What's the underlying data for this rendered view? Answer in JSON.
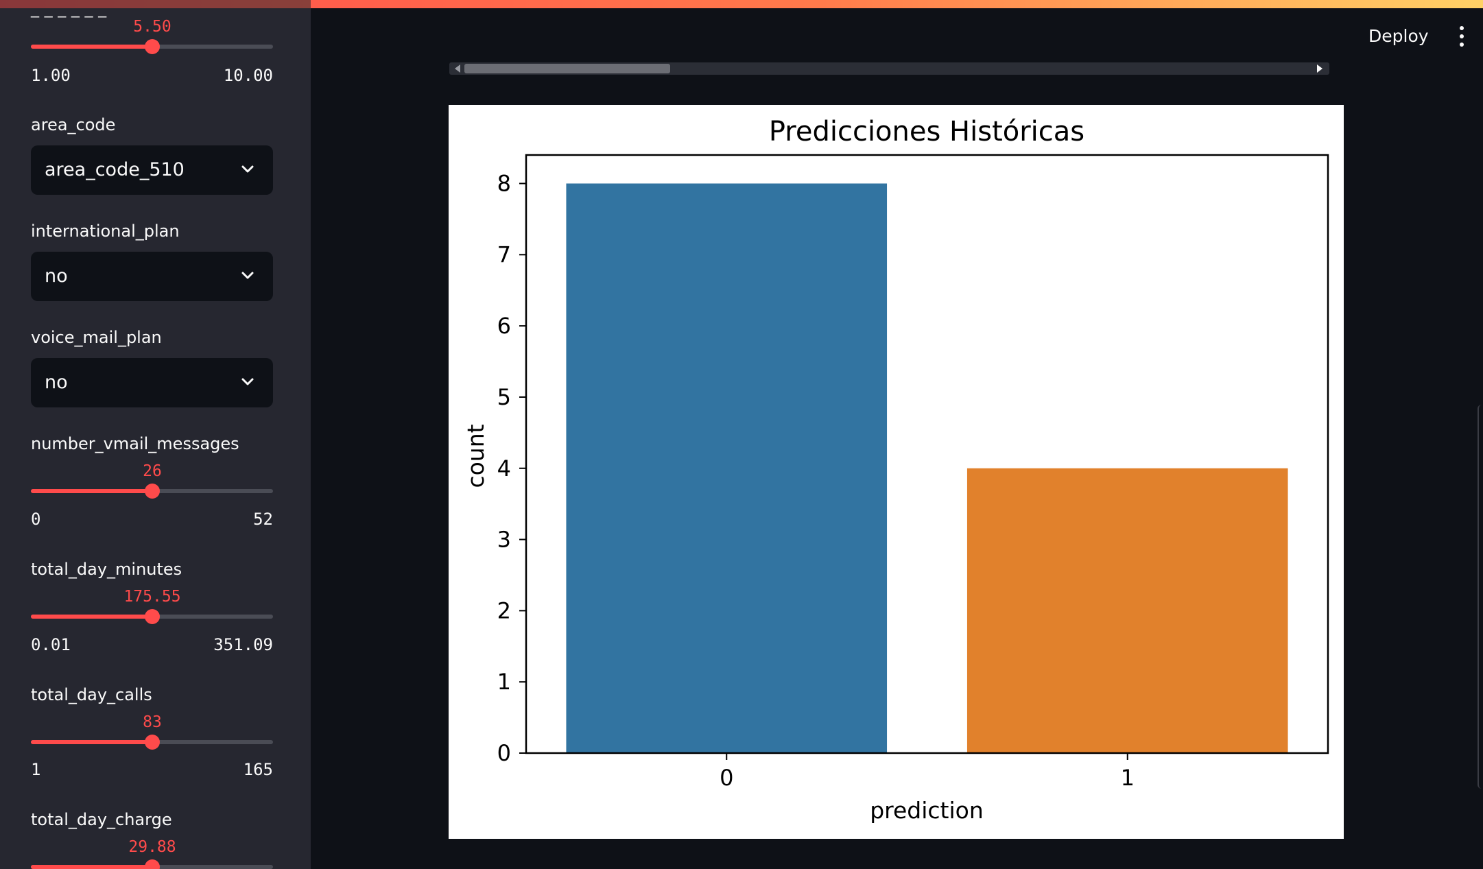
{
  "header": {
    "deploy_label": "Deploy",
    "menu_icon": "more-vertical-icon"
  },
  "sidebar": {
    "cut_label": "_ _ _ _ _ _",
    "slider_top": {
      "value": "5.50",
      "min": "1.00",
      "max": "10.00",
      "fraction": 0.5
    },
    "area_code": {
      "label": "area_code",
      "selected": "area_code_510"
    },
    "international_plan": {
      "label": "international_plan",
      "selected": "no"
    },
    "voice_mail_plan": {
      "label": "voice_mail_plan",
      "selected": "no"
    },
    "number_vmail_messages": {
      "label": "number_vmail_messages",
      "value": "26",
      "min": "0",
      "max": "52",
      "fraction": 0.5
    },
    "total_day_minutes": {
      "label": "total_day_minutes",
      "value": "175.55",
      "min": "0.01",
      "max": "351.09",
      "fraction": 0.5
    },
    "total_day_calls": {
      "label": "total_day_calls",
      "value": "83",
      "min": "1",
      "max": "165",
      "fraction": 0.5
    },
    "total_day_charge": {
      "label": "total_day_charge",
      "value": "29.88",
      "fraction": 0.5
    }
  },
  "colors": {
    "accent": "#ff4b4b",
    "bar_0": "#3274a1",
    "bar_1": "#e1812c",
    "sidebar_bg": "#262730",
    "app_bg": "#0e1117"
  },
  "chart_data": {
    "type": "bar",
    "title": "Predicciones Históricas",
    "xlabel": "prediction",
    "ylabel": "count",
    "categories": [
      "0",
      "1"
    ],
    "values": [
      8,
      4
    ],
    "ylim": [
      0,
      8.4
    ],
    "yticks": [
      "0",
      "1",
      "2",
      "3",
      "4",
      "5",
      "6",
      "7",
      "8"
    ],
    "grid": false,
    "legend": "none"
  }
}
